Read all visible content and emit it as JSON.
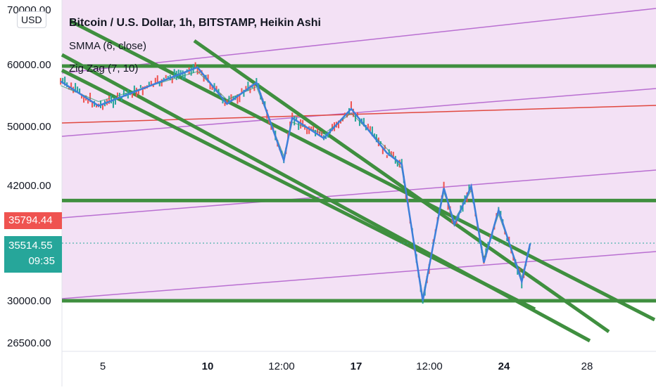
{
  "chart_data": {
    "type": "line",
    "title": "Bitcoin / U.S. Dollar, 1h, BITSTAMP, Heikin Ashi",
    "indicators": [
      "SMMA (6, close)",
      "Zig Zag (7, 10)"
    ],
    "y_ticks": [
      "70000.00",
      "60000.00",
      "50000.00",
      "42000.00",
      "30000.00",
      "26500.00"
    ],
    "x_ticks": [
      {
        "label": "5",
        "bold": false
      },
      {
        "label": "10",
        "bold": true
      },
      {
        "label": "12:00",
        "bold": false
      },
      {
        "label": "17",
        "bold": true
      },
      {
        "label": "12:00",
        "bold": false
      },
      {
        "label": "24",
        "bold": true
      },
      {
        "label": "28",
        "bold": false
      }
    ],
    "last_price": "35514.55",
    "countdown": "09:35",
    "high_marker": "35794.44",
    "currency": "USD",
    "horizontal_levels": [
      60000,
      40500,
      30000
    ],
    "zigzag": [
      [
        3,
        57500
      ],
      [
        4.8,
        53500
      ],
      [
        9.5,
        59800
      ],
      [
        10.9,
        53800
      ],
      [
        12.3,
        57300
      ],
      [
        13.6,
        45500
      ],
      [
        14,
        51500
      ],
      [
        15.5,
        48500
      ],
      [
        16.8,
        53000
      ],
      [
        18.5,
        46500
      ],
      [
        19.2,
        45000
      ],
      [
        20.2,
        30000
      ],
      [
        21.2,
        41800
      ],
      [
        21.7,
        38000
      ],
      [
        22.5,
        42000
      ],
      [
        23.1,
        34000
      ],
      [
        23.8,
        39500
      ],
      [
        24.9,
        32000
      ],
      [
        25.3,
        36000
      ]
    ],
    "colors": {
      "background_band": "#f3e1f5",
      "channel_lines": "#3f8f3f",
      "parallel_lines": "#b96fd1",
      "red_line": "#e0483f",
      "zigzag": "#3d7fd9",
      "price_tag_red": "#ef5350",
      "price_tag_teal": "#26a69a"
    }
  }
}
